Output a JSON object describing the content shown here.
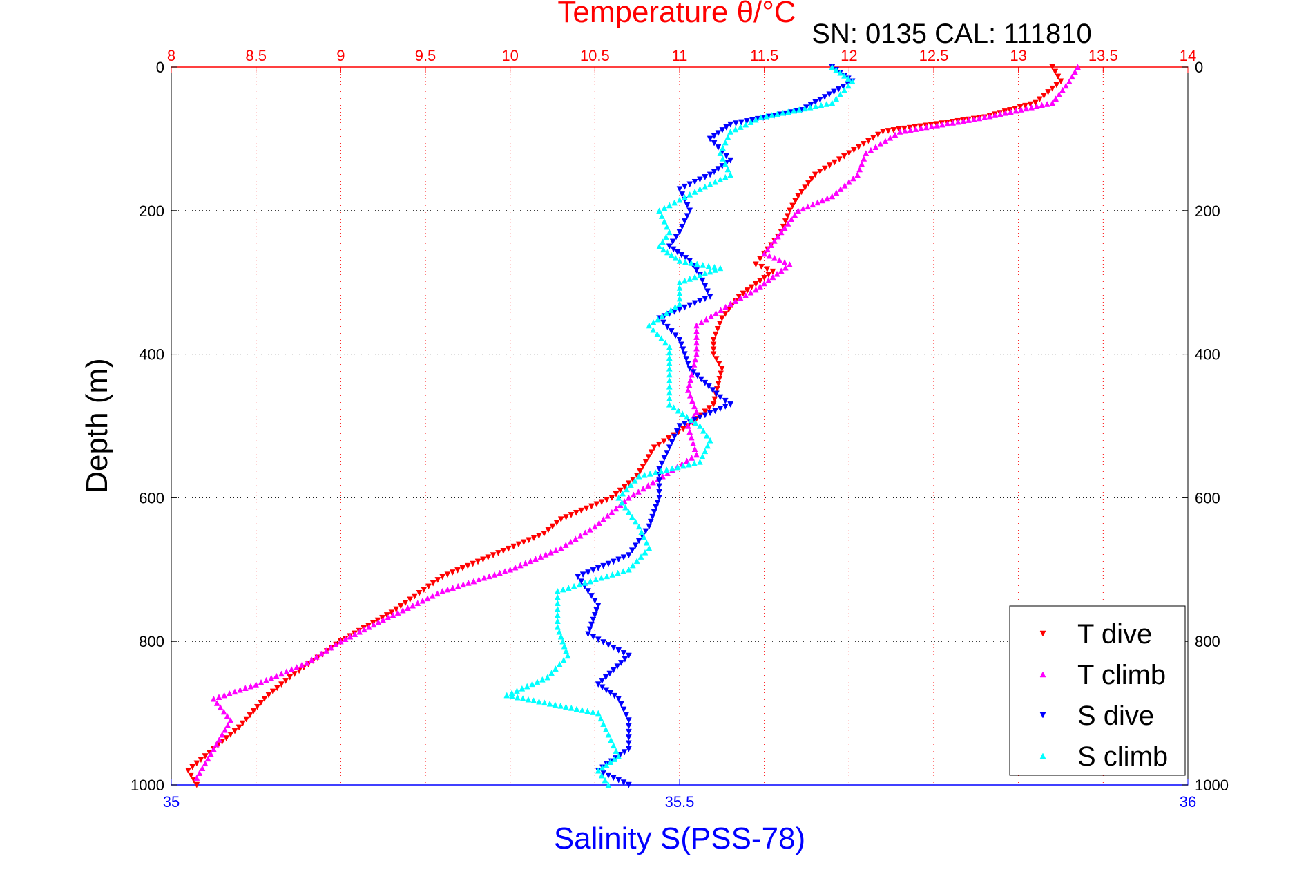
{
  "chart_data": {
    "type": "scatter",
    "title": "Temperature θ/°C",
    "annotation": "SN: 0135  CAL: 111810",
    "xlabel_top": "Temperature θ/°C",
    "xlabel_bottom": "Salinity S(PSS-78)",
    "ylabel": "Depth (m)",
    "x_top_range": [
      8,
      14
    ],
    "x_top_ticks": [
      "8",
      "8.5",
      "9",
      "9.5",
      "10",
      "10.5",
      "11",
      "11.5",
      "12",
      "12.5",
      "13",
      "13.5",
      "14"
    ],
    "x_bottom_range": [
      35,
      36
    ],
    "x_bottom_ticks": [
      "35",
      "35.5",
      "36"
    ],
    "y_range": [
      0,
      1000
    ],
    "y_ticks": [
      "0",
      "200",
      "400",
      "600",
      "800",
      "1000"
    ],
    "grid": true,
    "legend_position": "bottom-right",
    "colors": {
      "temperature_axis": "#ff0000",
      "salinity_axis": "#0000ff",
      "t_dive": "#ff0000",
      "t_climb": "#ff00ff",
      "s_dive": "#0000ff",
      "s_climb": "#00ffff"
    },
    "series": [
      {
        "name": "T dive",
        "axis": "temperature",
        "marker": "triangle-down",
        "color": "#ff0000",
        "points": [
          [
            13.2,
            0
          ],
          [
            13.25,
            20
          ],
          [
            13.1,
            50
          ],
          [
            12.8,
            70
          ],
          [
            12.2,
            90
          ],
          [
            12.0,
            120
          ],
          [
            11.8,
            150
          ],
          [
            11.7,
            180
          ],
          [
            11.65,
            200
          ],
          [
            11.6,
            230
          ],
          [
            11.5,
            260
          ],
          [
            11.45,
            275
          ],
          [
            11.55,
            285
          ],
          [
            11.35,
            320
          ],
          [
            11.25,
            350
          ],
          [
            11.2,
            380
          ],
          [
            11.2,
            400
          ],
          [
            11.25,
            420
          ],
          [
            11.2,
            470
          ],
          [
            11.05,
            500
          ],
          [
            10.85,
            530
          ],
          [
            10.75,
            570
          ],
          [
            10.6,
            600
          ],
          [
            10.3,
            630
          ],
          [
            10.2,
            650
          ],
          [
            9.9,
            680
          ],
          [
            9.6,
            710
          ],
          [
            9.3,
            760
          ],
          [
            9.0,
            800
          ],
          [
            8.7,
            850
          ],
          [
            8.55,
            880
          ],
          [
            8.4,
            920
          ],
          [
            8.2,
            960
          ],
          [
            8.1,
            980
          ],
          [
            8.15,
            1000
          ]
        ]
      },
      {
        "name": "T climb",
        "axis": "temperature",
        "marker": "triangle-up",
        "color": "#ff00ff",
        "points": [
          [
            13.35,
            0
          ],
          [
            13.3,
            20
          ],
          [
            13.2,
            50
          ],
          [
            12.8,
            70
          ],
          [
            12.3,
            90
          ],
          [
            12.1,
            120
          ],
          [
            12.05,
            150
          ],
          [
            11.9,
            180
          ],
          [
            11.7,
            200
          ],
          [
            11.6,
            230
          ],
          [
            11.5,
            260
          ],
          [
            11.65,
            275
          ],
          [
            11.45,
            310
          ],
          [
            11.3,
            330
          ],
          [
            11.1,
            360
          ],
          [
            11.1,
            400
          ],
          [
            11.05,
            450
          ],
          [
            11.1,
            480
          ],
          [
            11.05,
            500
          ],
          [
            11.1,
            540
          ],
          [
            10.9,
            570
          ],
          [
            10.7,
            600
          ],
          [
            10.5,
            640
          ],
          [
            10.3,
            670
          ],
          [
            10.0,
            700
          ],
          [
            9.6,
            730
          ],
          [
            9.25,
            770
          ],
          [
            9.0,
            800
          ],
          [
            8.8,
            830
          ],
          [
            8.5,
            860
          ],
          [
            8.25,
            880
          ],
          [
            8.35,
            910
          ],
          [
            8.25,
            950
          ],
          [
            8.15,
            990
          ]
        ]
      },
      {
        "name": "S dive",
        "axis": "salinity",
        "marker": "triangle-down",
        "color": "#0000ff",
        "points": [
          [
            35.65,
            0
          ],
          [
            35.67,
            20
          ],
          [
            35.62,
            60
          ],
          [
            35.55,
            80
          ],
          [
            35.53,
            100
          ],
          [
            35.55,
            130
          ],
          [
            35.53,
            150
          ],
          [
            35.5,
            170
          ],
          [
            35.51,
            200
          ],
          [
            35.5,
            230
          ],
          [
            35.49,
            250
          ],
          [
            35.51,
            270
          ],
          [
            35.52,
            290
          ],
          [
            35.53,
            320
          ],
          [
            35.48,
            350
          ],
          [
            35.5,
            380
          ],
          [
            35.51,
            420
          ],
          [
            35.54,
            460
          ],
          [
            35.55,
            470
          ],
          [
            35.5,
            500
          ],
          [
            35.49,
            530
          ],
          [
            35.48,
            560
          ],
          [
            35.48,
            600
          ],
          [
            35.47,
            640
          ],
          [
            35.45,
            680
          ],
          [
            35.4,
            710
          ],
          [
            35.42,
            750
          ],
          [
            35.41,
            790
          ],
          [
            35.45,
            820
          ],
          [
            35.42,
            860
          ],
          [
            35.44,
            880
          ],
          [
            35.45,
            910
          ],
          [
            35.45,
            950
          ],
          [
            35.42,
            980
          ],
          [
            35.45,
            1000
          ]
        ]
      },
      {
        "name": "S climb",
        "axis": "salinity",
        "marker": "triangle-up",
        "color": "#00ffff",
        "points": [
          [
            35.65,
            0
          ],
          [
            35.67,
            20
          ],
          [
            35.65,
            50
          ],
          [
            35.58,
            70
          ],
          [
            35.55,
            90
          ],
          [
            35.54,
            120
          ],
          [
            35.55,
            150
          ],
          [
            35.52,
            170
          ],
          [
            35.48,
            200
          ],
          [
            35.49,
            230
          ],
          [
            35.48,
            250
          ],
          [
            35.5,
            270
          ],
          [
            35.54,
            280
          ],
          [
            35.5,
            300
          ],
          [
            35.5,
            330
          ],
          [
            35.47,
            360
          ],
          [
            35.49,
            390
          ],
          [
            35.49,
            420
          ],
          [
            35.49,
            470
          ],
          [
            35.52,
            500
          ],
          [
            35.53,
            520
          ],
          [
            35.52,
            550
          ],
          [
            35.46,
            570
          ],
          [
            35.44,
            600
          ],
          [
            35.46,
            640
          ],
          [
            35.47,
            670
          ],
          [
            35.45,
            700
          ],
          [
            35.38,
            730
          ],
          [
            35.38,
            780
          ],
          [
            35.39,
            820
          ],
          [
            35.37,
            850
          ],
          [
            35.33,
            875
          ],
          [
            35.42,
            900
          ],
          [
            35.43,
            930
          ],
          [
            35.44,
            960
          ],
          [
            35.42,
            980
          ],
          [
            35.43,
            1000
          ]
        ]
      }
    ]
  }
}
